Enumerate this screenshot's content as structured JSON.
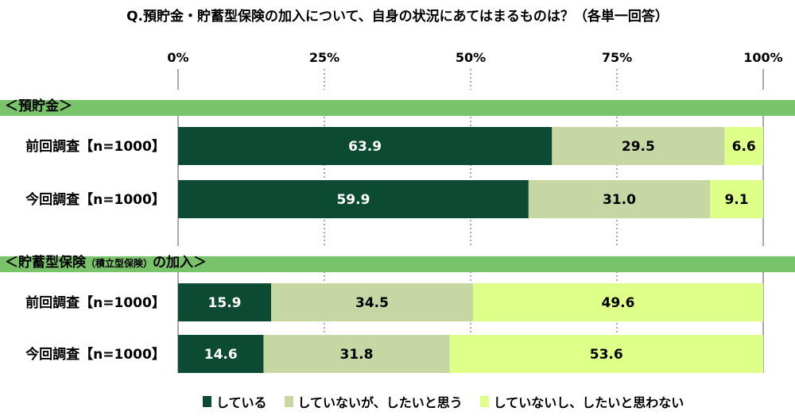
{
  "title": "Q.預貯金・貯蓄型保険の加入について、自身の状況にあてはまるものは？（各単一回答）",
  "chart_data": {
    "type": "bar",
    "orientation": "horizontal",
    "stacked": true,
    "xlim": [
      0,
      100
    ],
    "x_ticks": [
      "0%",
      "25%",
      "50%",
      "75%",
      "100%"
    ],
    "grid": true,
    "legend_position": "bottom",
    "series_names": [
      "している",
      "していないが、したいと思う",
      "していないし、したいと思わない"
    ],
    "colors": [
      "#0d4a33",
      "#c6d7a3",
      "#deff88"
    ],
    "groups": [
      {
        "label": "＜預貯金＞",
        "rows": [
          {
            "label": "前回調査【n=1000】",
            "values": [
              63.9,
              29.5,
              6.6
            ]
          },
          {
            "label": "今回調査【n=1000】",
            "values": [
              59.9,
              31.0,
              9.1
            ]
          }
        ]
      },
      {
        "label": "＜貯蓄型保険",
        "label_small": "（積立型保険）",
        "label_tail": "の加入＞",
        "rows": [
          {
            "label": "前回調査【n=1000】",
            "values": [
              15.9,
              34.5,
              49.6
            ]
          },
          {
            "label": "今回調査【n=1000】",
            "values": [
              14.6,
              31.8,
              53.6
            ]
          }
        ]
      }
    ]
  }
}
